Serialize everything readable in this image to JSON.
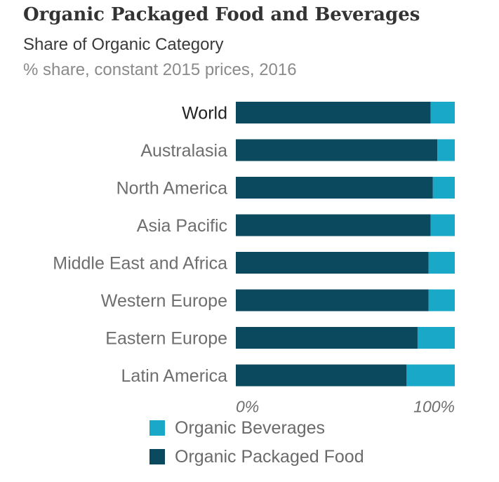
{
  "title": "Organic Packaged Food and Beverages",
  "subtitle": "Share of Organic Category",
  "unit_line": "% share, constant 2015 prices, 2016",
  "colors": {
    "organic_packaged_food": "#0b4a5e",
    "organic_beverages": "#1aa8c9",
    "highlight_label": "#222222",
    "label": "#6e6e6e"
  },
  "chart_data": {
    "type": "bar",
    "orientation": "horizontal",
    "stacked": true,
    "categories": [
      "World",
      "Australasia",
      "North America",
      "Asia Pacific",
      "Middle East and Africa",
      "Western Europe",
      "Eastern Europe",
      "Latin America"
    ],
    "highlight_category": "World",
    "series": [
      {
        "name": "Organic Packaged Food",
        "color": "#0b4a5e",
        "values": [
          89,
          92,
          90,
          89,
          88,
          88,
          83,
          78
        ]
      },
      {
        "name": "Organic Beverages",
        "color": "#1aa8c9",
        "values": [
          11,
          8,
          10,
          11,
          12,
          12,
          17,
          22
        ]
      }
    ],
    "xlim": [
      0,
      100
    ],
    "x_tick_labels": [
      "0%",
      "100%"
    ],
    "grid": false,
    "legend_position": "bottom"
  },
  "legend": {
    "items": [
      {
        "label": "Organic Beverages",
        "color": "#1aa8c9"
      },
      {
        "label": "Organic Packaged Food",
        "color": "#0b4a5e"
      }
    ]
  }
}
